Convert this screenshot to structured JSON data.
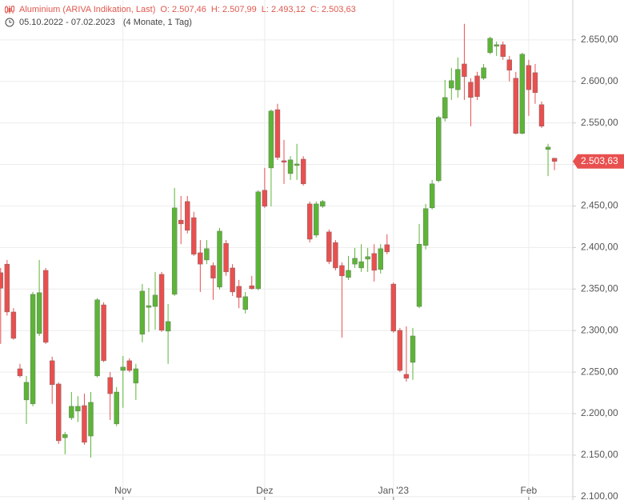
{
  "chart_data": {
    "type": "candlestick",
    "title": "Aluminium (ARIVA Indikation, Last)",
    "ohlc_readout": [
      "O: 2.507,46",
      "H: 2.507,99",
      "L: 2.493,12",
      "C: 2.503,63"
    ],
    "date_range": "05.10.2022 - 07.02.2023",
    "period": "(4 Monate, 1 Tag)",
    "categories": [
      null,
      null,
      null,
      null,
      null,
      null,
      null,
      null,
      null,
      null,
      null,
      null,
      null,
      null,
      null,
      null,
      null,
      null,
      null,
      "Nov",
      null,
      null,
      null,
      null,
      null,
      null,
      null,
      null,
      null,
      null,
      null,
      null,
      null,
      null,
      null,
      null,
      null,
      null,
      null,
      null,
      null,
      "Dez",
      null,
      null,
      null,
      null,
      null,
      null,
      null,
      null,
      null,
      null,
      null,
      null,
      null,
      null,
      null,
      null,
      null,
      null,
      null,
      "Jan '23",
      null,
      null,
      null,
      null,
      null,
      null,
      null,
      null,
      null,
      null,
      null,
      null,
      null,
      null,
      null,
      null,
      null,
      null,
      null,
      null,
      "Feb",
      null,
      null,
      null,
      null
    ],
    "open": [
      2369.7,
      2380,
      2322.4,
      2254,
      2216.5,
      2211.7,
      2296.4,
      2372.5,
      2263.7,
      2235.7,
      2171,
      2195,
      2203,
      2209.7,
      2173,
      2245.4,
      2331,
      2243.5,
      2187.6,
      2252,
      2263.7,
      2236.7,
      2295.5,
      2328,
      2329,
      2367.7,
      2299.3,
      2343.6,
      2433,
      2455.4,
      2436,
      2393.7,
      2385,
      2378.3,
      2352.3,
      2405,
      2375.4,
      2353.3,
      2325.3,
      2354,
      2350.4,
      2469,
      2495.8,
      2566,
      2504.5,
      2489,
      2498.7,
      2506.4,
      2452.5,
      2414.9,
      2449.6,
      2418.8,
      2406,
      2378.3,
      2364,
      2380,
      2375.4,
      2386,
      2392.8,
      2373.5,
      2403.4,
      2356,
      2300.3,
      2247.3,
      2261.7,
      2329,
      2402.4,
      2447.7,
      2480.4,
      2555.6,
      2592,
      2590,
      2621,
      2599,
      2606.6,
      2603.8,
      2634.6,
      2642.3,
      2644.2,
      2626,
      2603.8,
      2537.3,
      2619.2,
      2610.5,
      2572,
      2518,
      2507.46
    ],
    "high": [
      2375.4,
      2385,
      2327,
      2260,
      2245.4,
      2346.5,
      2385,
      2375.4,
      2268.5,
      2237.7,
      2178,
      2226,
      2221,
      2224,
      2226,
      2339,
      2334,
      2250,
      2232,
      2269.5,
      2266.6,
      2260,
      2356,
      2351.4,
      2370.6,
      2370.6,
      2332,
      2471.8,
      2462,
      2462,
      2443,
      2409,
      2409,
      2382,
      2423.6,
      2409,
      2380,
      2361,
      2346.5,
      2365.8,
      2469,
      2495.8,
      2566,
      2573,
      2529.6,
      2510,
      2524.8,
      2510,
      2455.4,
      2455.4,
      2457.3,
      2421.7,
      2409,
      2382,
      2389.9,
      2399.5,
      2404,
      2399.5,
      2404,
      2404,
      2416,
      2358,
      2303.2,
      2305,
      2303.2,
      2428.4,
      2452.5,
      2481.4,
      2558.5,
      2601.8,
      2616.3,
      2628.8,
      2669.3,
      2603.8,
      2611.5,
      2621,
      2653.9,
      2648,
      2648,
      2630.7,
      2611.5,
      2634.6,
      2626,
      2621,
      2575.8,
      2524.8,
      2507.99
    ],
    "low": [
      2284,
      2318,
      2289,
      2243.5,
      2187.6,
      2208.8,
      2293.5,
      2284,
      2211.7,
      2163.5,
      2151,
      2192.4,
      2190,
      2162.5,
      2147,
      2243.5,
      2262,
      2192.4,
      2185,
      2207,
      2250,
      2216.5,
      2286,
      2298.4,
      2301,
      2298.4,
      2260,
      2341.7,
      2404,
      2416.9,
      2389.9,
      2346.5,
      2380,
      2337,
      2349.4,
      2366,
      2341.7,
      2327,
      2320.5,
      2349.4,
      2348.5,
      2447.7,
      2449.6,
      2505.5,
      2476.6,
      2481.4,
      2481.4,
      2474.6,
      2406,
      2412,
      2447.7,
      2380,
      2372.5,
      2291.6,
      2361,
      2375.4,
      2370.6,
      2370.6,
      2359,
      2368.7,
      2391.8,
      2297.4,
      2250,
      2238.6,
      2240.6,
      2327,
      2397.6,
      2445.8,
      2478.5,
      2551.7,
      2577.7,
      2580.6,
      2577.7,
      2546,
      2577.7,
      2601.8,
      2632.7,
      2630.7,
      2626,
      2600,
      2536.3,
      2536.3,
      2558.5,
      2573,
      2544,
      2486,
      2493.12
    ],
    "close": [
      2351,
      2322.4,
      2290.6,
      2245.4,
      2237.7,
      2343.6,
      2345.6,
      2285.8,
      2234.8,
      2167.3,
      2175,
      2208.8,
      2208.8,
      2165.4,
      2213.6,
      2337,
      2263.7,
      2224,
      2226,
      2256,
      2252,
      2254,
      2347.5,
      2330,
      2342.7,
      2300.3,
      2310.9,
      2447.7,
      2428.4,
      2420.7,
      2391.8,
      2380,
      2398.6,
      2363,
      2419.7,
      2370.6,
      2346.5,
      2339.8,
      2340.8,
      2350.4,
      2467,
      2449.6,
      2564.3,
      2508.4,
      2502.6,
      2505.5,
      2500.6,
      2476.6,
      2410,
      2452.5,
      2455.4,
      2383,
      2375.4,
      2365.8,
      2372.5,
      2387,
      2383,
      2389,
      2372.5,
      2398.6,
      2394.7,
      2299.3,
      2252,
      2242.5,
      2293.5,
      2404,
      2446.8,
      2476.6,
      2556.5,
      2580.6,
      2600.9,
      2614.4,
      2605.7,
      2580.6,
      2581.6,
      2616.3,
      2651.9,
      2644.2,
      2629.8,
      2613.4,
      2537.3,
      2632.7,
      2590,
      2586.4,
      2546,
      2520.9,
      2503.63
    ],
    "up_color": "#5cb536",
    "down_color": "#e8504f",
    "last_price": {
      "value": 2503.63,
      "label": "2.503,63"
    },
    "ylim": [
      2096,
      2698
    ],
    "yticks": [
      {
        "value": 2100,
        "label": "2.100,00"
      },
      {
        "value": 2150,
        "label": "2.150,00"
      },
      {
        "value": 2200,
        "label": "2.200,00"
      },
      {
        "value": 2250,
        "label": "2.250,00"
      },
      {
        "value": 2300,
        "label": "2.300,00"
      },
      {
        "value": 2350,
        "label": "2.350,00"
      },
      {
        "value": 2400,
        "label": "2.400,00"
      },
      {
        "value": 2450,
        "label": "2.450,00"
      },
      {
        "value": 2500,
        "label": "2.500,00"
      },
      {
        "value": 2550,
        "label": "2.550,00"
      },
      {
        "value": 2600,
        "label": "2.600,00"
      },
      {
        "value": 2650,
        "label": "2.650,00"
      }
    ],
    "grid": true
  }
}
